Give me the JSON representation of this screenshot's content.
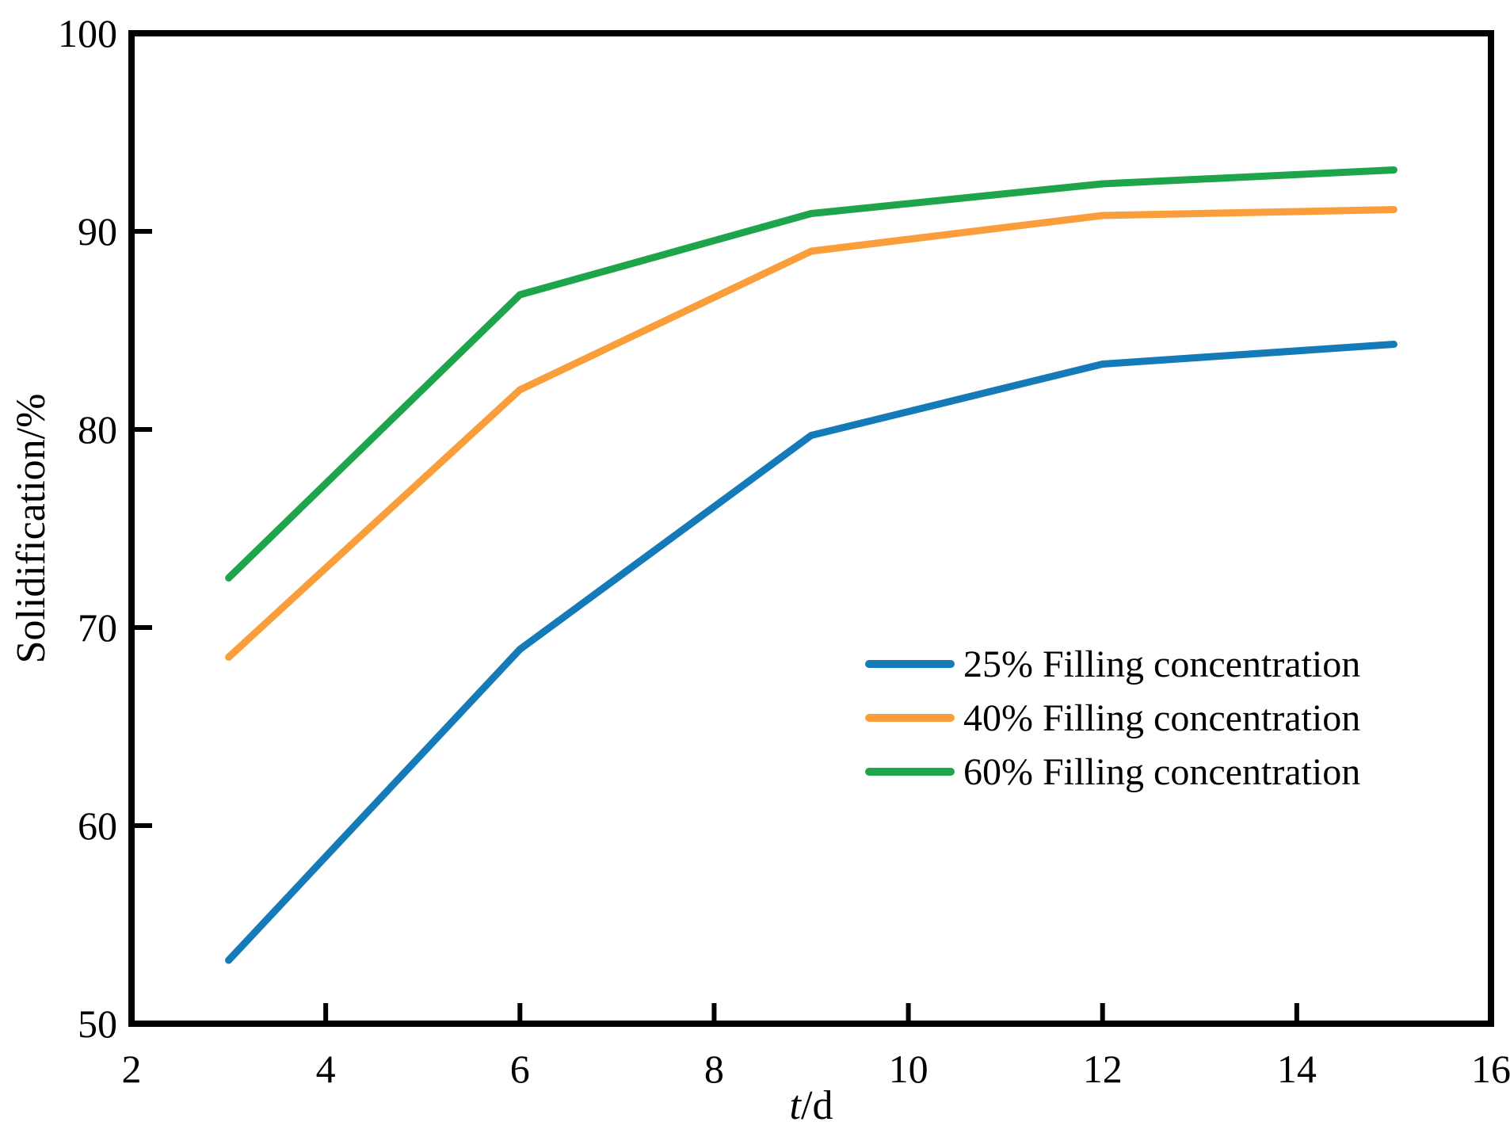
{
  "chart_data": {
    "type": "line",
    "title": "",
    "xlabel_variable": "t",
    "xlabel_unit": "/d",
    "ylabel": "Solidification/%",
    "x": [
      3,
      6,
      9,
      12,
      15
    ],
    "series": [
      {
        "name": "25% Filling concentration",
        "color": "#147AB8",
        "values": [
          53.2,
          68.9,
          79.7,
          83.3,
          84.3
        ]
      },
      {
        "name": "40% Filling concentration",
        "color": "#FA9E3C",
        "values": [
          68.5,
          82.0,
          89.0,
          90.8,
          91.1
        ]
      },
      {
        "name": "60% Filling concentration",
        "color": "#1EA54C",
        "values": [
          72.5,
          86.8,
          90.9,
          92.4,
          93.1
        ]
      }
    ],
    "xlim": [
      2,
      16
    ],
    "ylim": [
      50,
      100
    ],
    "xticks": [
      2,
      4,
      6,
      8,
      10,
      12,
      14,
      16
    ],
    "yticks": [
      50,
      60,
      70,
      80,
      90,
      100
    ],
    "grid": false,
    "legend_position": "inside-right-middle",
    "axis_color": "#000000",
    "background": "#ffffff"
  }
}
